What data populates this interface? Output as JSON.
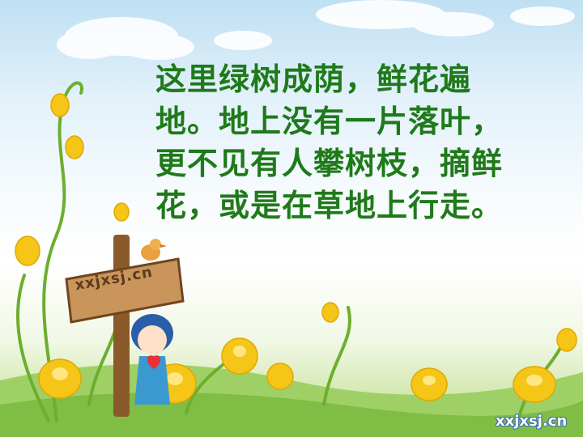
{
  "poem": {
    "lines": [
      "这里绿树成荫，鲜花遍",
      "地。地上没有一片落叶，",
      "更不见有人攀树枝，摘鲜",
      "花，或是在草地上行走。"
    ]
  },
  "sign": {
    "label": "xxjxsj.cn"
  },
  "watermark": {
    "label": "xxjxsj.cn"
  },
  "colors": {
    "text": "#1f7a1a",
    "sky": "#bfe0f3",
    "grass": "#8cc35a",
    "flower": "#f5c518"
  }
}
